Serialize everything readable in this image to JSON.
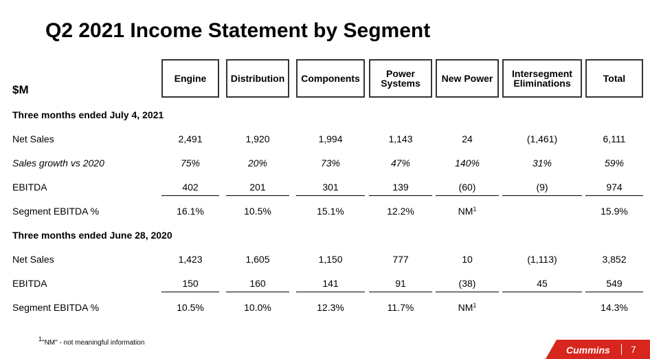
{
  "title": "Q2 2021 Income Statement by Segment",
  "unit_label": "$M",
  "columns": [
    "Engine",
    "Distribution",
    "Components",
    "Power\nSystems",
    "New Power",
    "Intersegment\nEliminations",
    "Total"
  ],
  "sections": [
    {
      "heading": "Three months ended July 4, 2021",
      "rows": [
        {
          "label": "Net Sales",
          "italic": false,
          "values": [
            "2,491",
            "1,920",
            "1,994",
            "1,143",
            "24",
            "(1,461)",
            "6,111"
          ]
        },
        {
          "label": "Sales growth vs 2020",
          "italic": true,
          "values": [
            "75%",
            "20%",
            "73%",
            "47%",
            "140%",
            "31%",
            "59%"
          ]
        },
        {
          "label": "EBITDA",
          "italic": false,
          "values": [
            "402",
            "201",
            "301",
            "139",
            "(60)",
            "(9)",
            "974"
          ]
        },
        {
          "label": "Segment EBITDA %",
          "italic": false,
          "values": [
            "16.1%",
            "10.5%",
            "15.1%",
            "12.2%",
            "NM",
            "",
            "15.9%"
          ]
        }
      ]
    },
    {
      "heading": "Three months ended June 28, 2020",
      "rows": [
        {
          "label": "Net Sales",
          "italic": false,
          "values": [
            "1,423",
            "1,605",
            "1,150",
            "777",
            "10",
            "(1,113)",
            "3,852"
          ]
        },
        {
          "label": "EBITDA",
          "italic": false,
          "values": [
            "150",
            "160",
            "141",
            "91",
            "(38)",
            "45",
            "549"
          ]
        },
        {
          "label": "Segment EBITDA %",
          "italic": false,
          "values": [
            "10.5%",
            "10.0%",
            "12.3%",
            "11.7%",
            "NM",
            "",
            "14.3%"
          ]
        }
      ]
    }
  ],
  "nm_footnote_marker": "1",
  "footnote": {
    "marker": "1",
    "text": "\"NM\" - not meaningful information"
  },
  "brand": {
    "name": "Cummins",
    "page_number": "7",
    "color": "#d7261e"
  }
}
